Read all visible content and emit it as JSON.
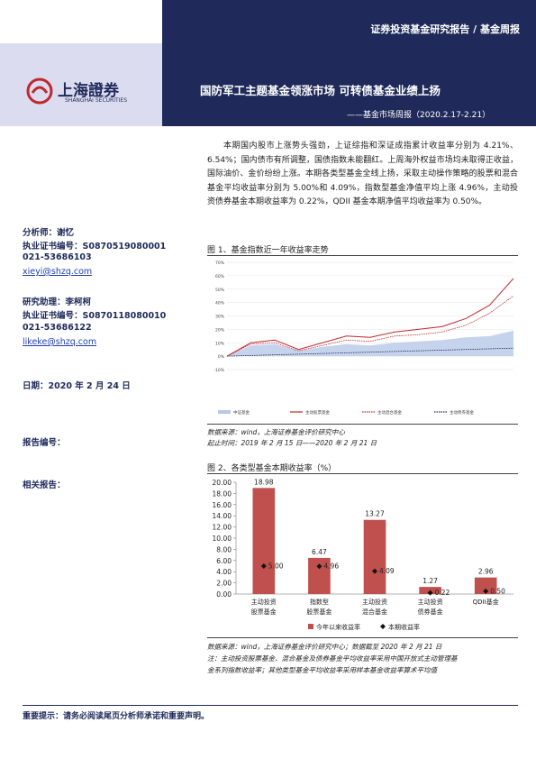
{
  "header": {
    "series": "证券投资基金研究报告 / 基金周报",
    "logo_cn": "上海證券",
    "logo_en": "SHANGHAI SECURITIES",
    "title": "国防军工主题基金领涨市场 可转债基金业绩上扬",
    "subtitle": "——基金市场周报（2020.2.17-2.21）"
  },
  "sidebar": {
    "analyst": "分析师：谢忆",
    "analyst_cert": "执业证书编号：S0870519080001",
    "analyst_phone": "021-53686103",
    "analyst_email": "xieyi@shzq.com",
    "assistant": "研究助理：李柯柯",
    "assistant_cert": "执业证书编号：S0870118080010",
    "assistant_phone": "021-53686122",
    "assistant_email": "likeke@shzq.com",
    "date": "日期：2020 年 2 月 24 日",
    "report_no": "报告编号：",
    "related": "相关报告："
  },
  "summary": "本期国内股市上涨势头强劲，上证综指和深证成指累计收益率分别为 4.21%、6.54%；国内债市有所调整，国债指数未能翻红。上周海外权益市场均未取得正收益，国际油价、金价纷纷上涨。本期各类型基金全线上扬，采取主动操作策略的股票和混合基金平均收益率分别为 5.00%和 4.09%，指数型基金净值平均上涨 4.96%，主动投资债券基金本期收益率为 0.22%，QDII 基金本期净值平均收益率为 0.50%。",
  "figure1": {
    "caption": "图 1、基金指数近一年收益率走势",
    "source": "数据来源：wind，上海证券基金评价研究中心",
    "period": "起止时间：2019 年 2 月 15 日——2020 年 2 月 21 日",
    "chart_data": {
      "type": "line",
      "categories": [
        null,
        null,
        null,
        null,
        null,
        null,
        null,
        null,
        null,
        null,
        null,
        null,
        null
      ],
      "ylim": [
        -10,
        70
      ],
      "yticks": [
        {
          "value": -10,
          "label": "-10%"
        },
        {
          "value": 0,
          "label": "0%"
        },
        {
          "value": 10,
          "label": "10%"
        },
        {
          "value": 20,
          "label": "20%"
        },
        {
          "value": 30,
          "label": "30%"
        },
        {
          "value": 40,
          "label": "40%"
        },
        {
          "value": 50,
          "label": "50%"
        },
        {
          "value": 60,
          "label": "60%"
        },
        {
          "value": 70,
          "label": "70%"
        }
      ],
      "grid": true,
      "series": [
        {
          "name": "中证基金",
          "color": "#b8c8e8",
          "style": "area",
          "values": [
            0,
            8,
            9,
            4,
            7,
            9,
            8,
            10,
            11,
            12,
            14,
            15,
            19
          ]
        },
        {
          "name": "主动股票基金",
          "color": "#c0282d",
          "style": "solid",
          "values": [
            0,
            10,
            12,
            5,
            10,
            15,
            14,
            18,
            20,
            22,
            28,
            38,
            58
          ]
        },
        {
          "name": "主动混合基金",
          "color": "#c0282d",
          "style": "dotted",
          "values": [
            0,
            9,
            10,
            4,
            8,
            12,
            11,
            15,
            16,
            18,
            23,
            32,
            45
          ]
        },
        {
          "name": "主动债券基金",
          "color": "#1f2a5a",
          "style": "dotted",
          "values": [
            0,
            0.5,
            1,
            1.5,
            2,
            2.5,
            3,
            3.5,
            4,
            4.5,
            5,
            5.5,
            6
          ]
        }
      ]
    }
  },
  "figure2": {
    "caption": "图 2、各类型基金本期收益率（%）",
    "source": "数据来源：wind，上海证券基金评价研究中心；数据截至 2020 年 2 月 21 日",
    "note1": "注：主动投资股票基金、混合基金及债券基金平均收益率采用中国开放式主动管理基",
    "note2": "金系列指数收益率；其他类型基金平均收益率采用样本基金收益率算术平均值",
    "chart_data": {
      "type": "bar",
      "categories": [
        "主动投资\n股票基金",
        "指数型\n股票基金",
        "主动投资\n混合基金",
        "主动投资\n债券基金",
        "QDII基金"
      ],
      "ylim": [
        0,
        20
      ],
      "yticks": [
        {
          "value": 0,
          "label": "0.00"
        },
        {
          "value": 2,
          "label": "2.00"
        },
        {
          "value": 4,
          "label": "4.00"
        },
        {
          "value": 6,
          "label": "6.00"
        },
        {
          "value": 8,
          "label": "8.00"
        },
        {
          "value": 10,
          "label": "10.00"
        },
        {
          "value": 12,
          "label": "12.00"
        },
        {
          "value": 14,
          "label": "14.00"
        },
        {
          "value": 16,
          "label": "16.00"
        },
        {
          "value": 18,
          "label": "18.00"
        },
        {
          "value": 20,
          "label": "20.00"
        }
      ],
      "series": [
        {
          "name": "今年以来收益率",
          "color": "#c0504d",
          "style": "bar",
          "values": [
            18.98,
            6.47,
            13.27,
            1.27,
            2.96
          ]
        },
        {
          "name": "本期收益率",
          "color": "#111111",
          "style": "diamond",
          "values": [
            5,
            4.96,
            4.09,
            0.22,
            0.5
          ],
          "value_labels": [
            "5.00",
            "4.96",
            "4.09",
            "0.22",
            "0.50"
          ]
        }
      ]
    }
  },
  "footer": "重要提示：请务必阅读尾页分析师承诺和重要声明。"
}
